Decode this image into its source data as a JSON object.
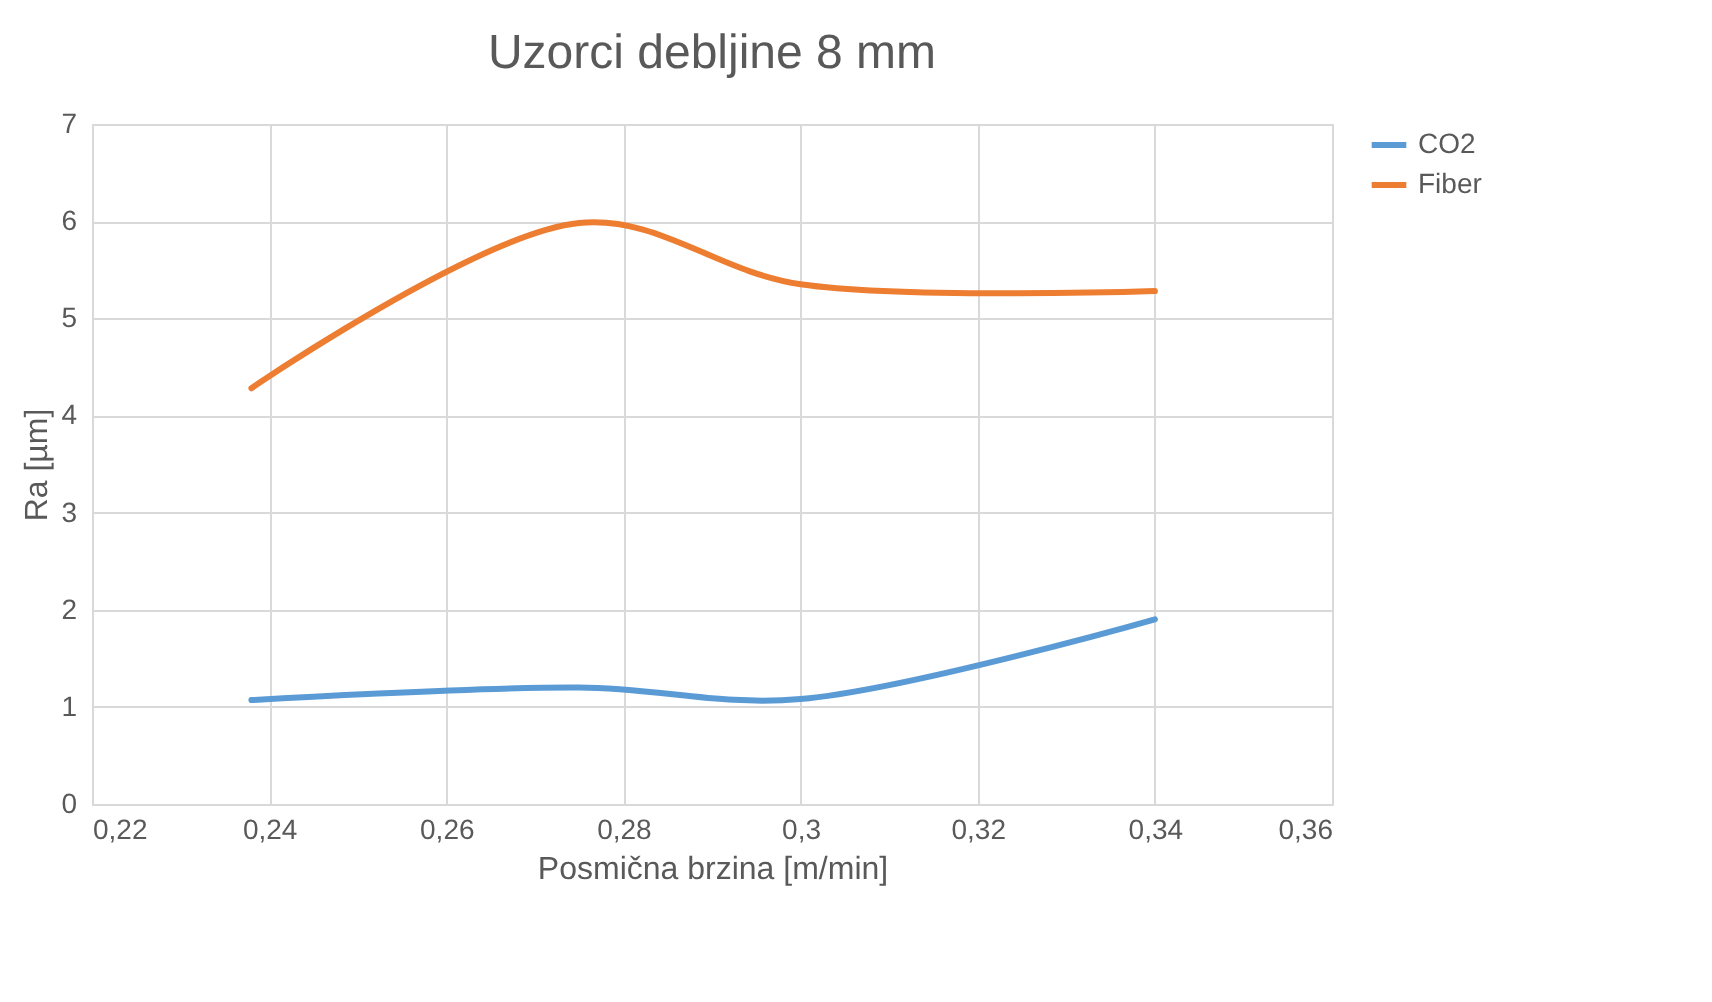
{
  "chart_data": {
    "type": "line",
    "title": "Uzorci debljine 8 mm",
    "xlabel": "Posmična brzina [m/min]",
    "ylabel": "Ra [µm]",
    "x": [
      0.238,
      0.275,
      0.3,
      0.34
    ],
    "series": [
      {
        "name": "CO2",
        "color": "#5b9bd5",
        "values": [
          1.07,
          1.2,
          1.08,
          1.9
        ]
      },
      {
        "name": "Fiber",
        "color": "#ed7d31",
        "values": [
          4.28,
          5.98,
          5.35,
          5.28
        ]
      }
    ],
    "xlim": [
      0.22,
      0.36
    ],
    "xticks": [
      {
        "value": 0.22,
        "label": "0,22"
      },
      {
        "value": 0.24,
        "label": "0,24"
      },
      {
        "value": 0.26,
        "label": "0,26"
      },
      {
        "value": 0.28,
        "label": "0,28"
      },
      {
        "value": 0.3,
        "label": "0,3"
      },
      {
        "value": 0.32,
        "label": "0,32"
      },
      {
        "value": 0.34,
        "label": "0,34"
      },
      {
        "value": 0.36,
        "label": "0,36"
      }
    ],
    "ylim": [
      0,
      7
    ],
    "yticks": [
      0,
      1,
      2,
      3,
      4,
      5,
      6,
      7
    ],
    "grid": true,
    "legend": "right",
    "marker": "none",
    "line_style": "solid"
  }
}
